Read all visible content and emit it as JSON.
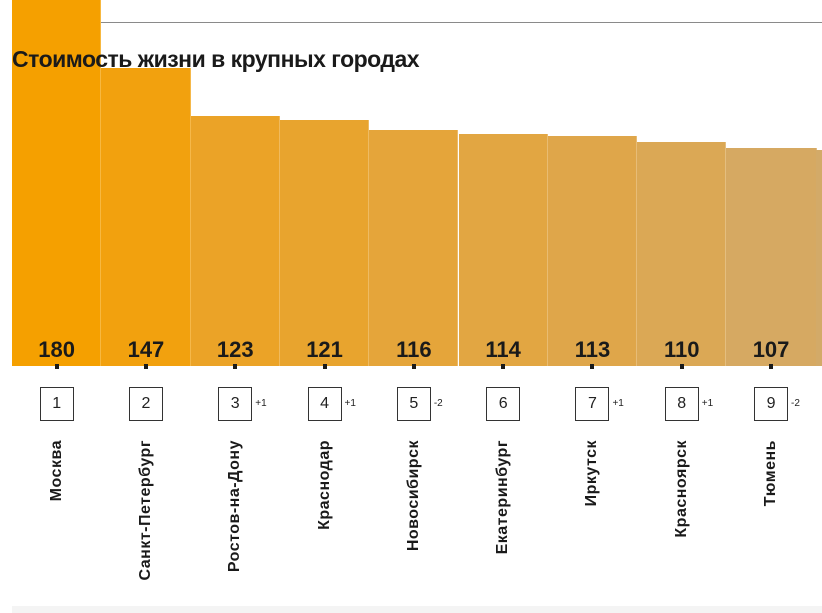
{
  "chart_data": {
    "type": "bar",
    "title": "Стоимость жизни в крупных городах",
    "categories": [
      "Москва",
      "Санкт-Петербург",
      "Ростов-на-Дону",
      "Краснодар",
      "Новосибирск",
      "Екатеринбург",
      "Иркутск",
      "Красноярск",
      "Тюмень"
    ],
    "values": [
      180,
      147,
      123,
      121,
      116,
      114,
      113,
      110,
      107
    ],
    "ranks": [
      "1",
      "2",
      "3",
      "4",
      "5",
      "6",
      "7",
      "8",
      "9"
    ],
    "rank_changes": [
      "",
      "",
      "+1",
      "+1",
      "-2",
      "",
      "+1",
      "+1",
      "-2"
    ],
    "colors": [
      "#f5a000",
      "#f2a10e",
      "#eba327",
      "#e8a42e",
      "#e5a53a",
      "#e2a642",
      "#dfa64a",
      "#dba855",
      "#d6a962"
    ],
    "xlabel": "",
    "ylabel": ""
  }
}
